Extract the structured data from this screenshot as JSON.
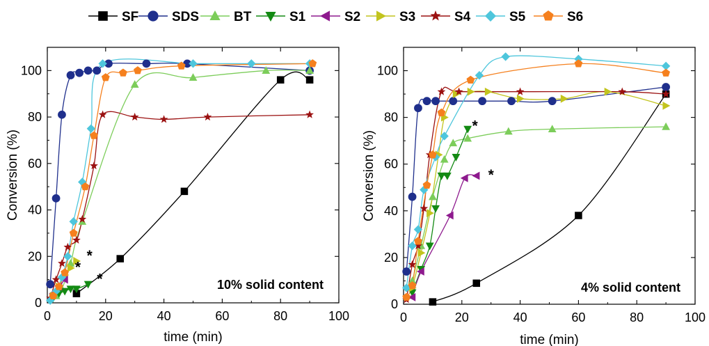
{
  "legend": [
    {
      "name": "SF",
      "color": "#000000",
      "marker": "square"
    },
    {
      "name": "SDS",
      "color": "#1f2f8c",
      "marker": "circle"
    },
    {
      "name": "BT",
      "color": "#7ccd5a",
      "marker": "triangle-up"
    },
    {
      "name": "S1",
      "color": "#138a13",
      "marker": "triangle-down"
    },
    {
      "name": "S2",
      "color": "#8e1a8e",
      "marker": "triangle-left"
    },
    {
      "name": "S3",
      "color": "#c2c41e",
      "marker": "triangle-right"
    },
    {
      "name": "S4",
      "color": "#9b1111",
      "marker": "star"
    },
    {
      "name": "S5",
      "color": "#4ec6dc",
      "marker": "diamond"
    },
    {
      "name": "S6",
      "color": "#f5801e",
      "marker": "pentagon"
    }
  ],
  "chart_data": [
    {
      "type": "scatter",
      "annotation": "10% solid content",
      "xlabel": "time (min)",
      "ylabel": "Conversion (%)",
      "xlim": [
        0,
        100
      ],
      "ylim": [
        0,
        110
      ],
      "xticks": [
        0,
        20,
        40,
        60,
        80,
        100
      ],
      "yticks": [
        0,
        20,
        40,
        60,
        80,
        100
      ],
      "series": [
        {
          "name": "SF",
          "x": [
            10,
            25,
            47,
            80,
            90
          ],
          "y": [
            4,
            19,
            48,
            96,
            96
          ]
        },
        {
          "name": "SDS",
          "x": [
            1,
            3,
            5,
            8,
            11,
            14,
            17,
            21,
            34,
            48,
            90
          ],
          "y": [
            8,
            45,
            81,
            98,
            99,
            100,
            100,
            103,
            103,
            103,
            100
          ]
        },
        {
          "name": "BT",
          "x": [
            3,
            5,
            8,
            12,
            30,
            50,
            75,
            90
          ],
          "y": [
            3,
            6,
            17,
            35,
            94,
            97,
            100,
            100
          ]
        },
        {
          "name": "S1",
          "x": [
            2,
            4,
            6,
            8,
            10,
            14
          ],
          "y": [
            2,
            4,
            5,
            6,
            6,
            8
          ]
        },
        {
          "name": "S2",
          "x": [
            2,
            4,
            6
          ],
          "y": [
            4,
            7,
            10
          ]
        },
        {
          "name": "S3",
          "x": [
            2,
            4,
            6,
            8,
            10
          ],
          "y": [
            3,
            7,
            12,
            15,
            18
          ]
        },
        {
          "name": "S4",
          "x": [
            1,
            3,
            5,
            7,
            10,
            12,
            16,
            19,
            30,
            40,
            55,
            90
          ],
          "y": [
            2,
            10,
            17,
            24,
            27,
            36,
            59,
            81,
            80,
            79,
            80,
            81
          ]
        },
        {
          "name": "S5",
          "x": [
            1,
            3,
            5,
            7,
            9,
            12,
            15,
            19,
            50,
            70,
            90
          ],
          "y": [
            1,
            5,
            11,
            20,
            35,
            52,
            75,
            103,
            103,
            103,
            103
          ]
        },
        {
          "name": "S6",
          "x": [
            2,
            4,
            6,
            9,
            13,
            16,
            20,
            26,
            31,
            46,
            91
          ],
          "y": [
            3,
            7,
            13,
            30,
            50,
            72,
            97,
            99,
            100,
            102,
            103
          ]
        }
      ],
      "stars": [
        {
          "x": 14.5,
          "y": 21
        },
        {
          "x": 10.5,
          "y": 16
        },
        {
          "x": 18,
          "y": 11
        }
      ]
    },
    {
      "type": "scatter",
      "annotation": "4% solid content",
      "xlabel": "time (min)",
      "ylabel": "Conversion (%)",
      "xlim": [
        0,
        100
      ],
      "ylim": [
        0,
        110
      ],
      "xticks": [
        0,
        20,
        40,
        60,
        80,
        100
      ],
      "yticks": [
        0,
        20,
        40,
        60,
        80,
        100
      ],
      "series": [
        {
          "name": "SF",
          "x": [
            10,
            25,
            60,
            90
          ],
          "y": [
            1,
            9,
            38,
            90
          ]
        },
        {
          "name": "SDS",
          "x": [
            1,
            3,
            5,
            8,
            11,
            17,
            27,
            37,
            51,
            90
          ],
          "y": [
            14,
            46,
            84,
            87,
            87,
            87,
            87,
            87,
            87,
            93
          ]
        },
        {
          "name": "BT",
          "x": [
            3,
            6,
            10,
            14,
            17,
            22,
            36,
            51,
            90
          ],
          "y": [
            10,
            25,
            46,
            62,
            69,
            71,
            74,
            75,
            76
          ]
        },
        {
          "name": "S1",
          "x": [
            3,
            6,
            9,
            11,
            13,
            15,
            18,
            22
          ],
          "y": [
            5,
            15,
            25,
            41,
            55,
            55,
            63,
            75
          ]
        },
        {
          "name": "S2",
          "x": [
            3,
            6,
            16,
            21,
            25
          ],
          "y": [
            3,
            14,
            38,
            54,
            55
          ]
        },
        {
          "name": "S3",
          "x": [
            3,
            6,
            9,
            12,
            14,
            18,
            23,
            29,
            40,
            55,
            70,
            90
          ],
          "y": [
            7,
            22,
            39,
            64,
            80,
            90,
            91,
            91,
            88,
            88,
            91,
            85
          ]
        },
        {
          "name": "S4",
          "x": [
            1,
            3,
            5,
            7,
            9,
            13,
            19,
            40,
            75,
            90
          ],
          "y": [
            2,
            17,
            25,
            41,
            64,
            91,
            91,
            91,
            91,
            90
          ]
        },
        {
          "name": "S5",
          "x": [
            1,
            3,
            5,
            7,
            11,
            14,
            26,
            35,
            60,
            90
          ],
          "y": [
            7,
            25,
            32,
            49,
            63,
            72,
            98,
            106,
            105,
            102
          ]
        },
        {
          "name": "S6",
          "x": [
            1,
            3,
            5,
            8,
            10,
            13,
            23,
            60,
            90
          ],
          "y": [
            3,
            8,
            27,
            51,
            64,
            82,
            96,
            103,
            99
          ]
        }
      ],
      "stars": [
        {
          "x": 24.5,
          "y": 77
        },
        {
          "x": 30,
          "y": 56
        }
      ]
    }
  ]
}
